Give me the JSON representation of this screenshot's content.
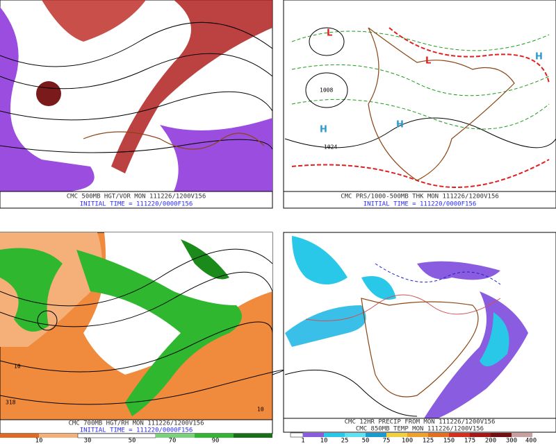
{
  "panels": [
    {
      "title": "CMC 500MB HGT/VOR MON 111226/1200V156",
      "subtitle": "INITIAL TIME = 111220/0000F156"
    },
    {
      "title": "CMC PRS/1000-500MB THK MON 111226/1200V156",
      "subtitle": "INITIAL TIME = 111220/0000F156",
      "map_labels": [
        "1024",
        "1008",
        "H",
        "H",
        "L",
        "L",
        "H"
      ]
    },
    {
      "title": "CMC 700MB HGT/RH MON 111226/1200V156",
      "subtitle": "INITIAL TIME = 111220/0000F156",
      "map_labels": [
        "318",
        "10",
        "10"
      ],
      "colorbar": [
        "10",
        "30",
        "50",
        "70",
        "90"
      ]
    },
    {
      "title": "CMC 12HR PRECIP FROM MON 111226/1200V156",
      "subtitle": "CMC 850MB TEMP MON 111226/1200V156",
      "colorbar": [
        "1",
        "10",
        "25",
        "50",
        "75",
        "100",
        "125",
        "150",
        "175",
        "200",
        "300",
        "400"
      ]
    }
  ]
}
